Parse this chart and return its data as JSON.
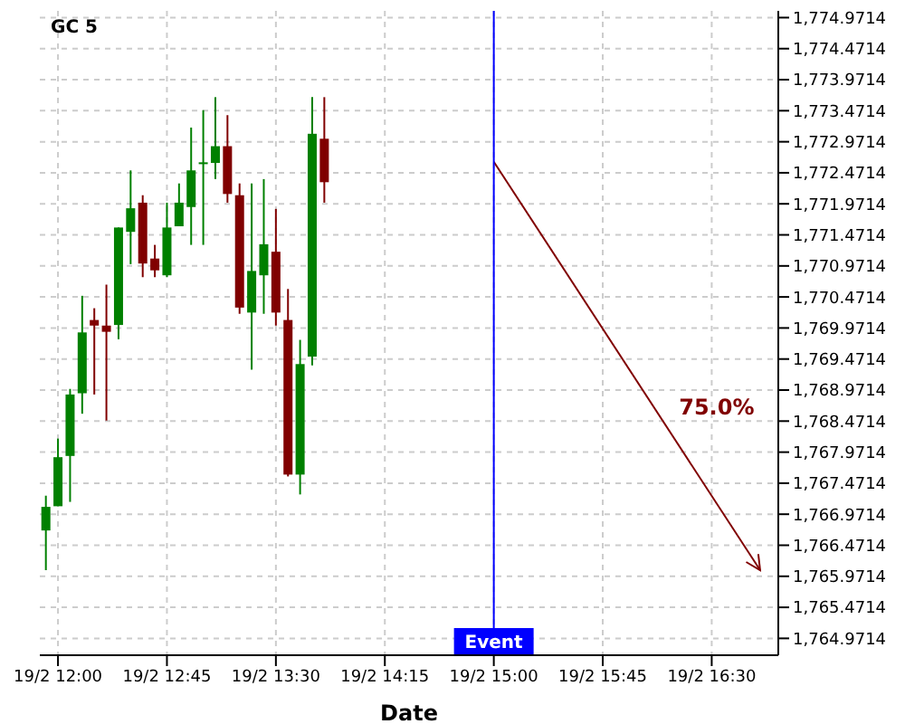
{
  "chart_data": {
    "type": "candlestick",
    "title": "GC 5",
    "xlabel": "Date",
    "categories": [
      null,
      "19/2 12:00",
      null,
      null,
      null,
      null,
      null,
      null,
      null,
      null,
      "19/2 12:45",
      null,
      null,
      null,
      null,
      null,
      null,
      null,
      null,
      "19/2 13:30",
      null,
      null,
      null,
      null,
      null,
      null,
      null,
      null,
      "19/2 14:15",
      null,
      null,
      null,
      null,
      null,
      null,
      null,
      null,
      "19/2 15:00",
      null,
      null,
      null,
      null,
      null,
      null,
      null,
      null,
      "19/2 15:45",
      null,
      null,
      null,
      null,
      null,
      null,
      null,
      null,
      "19/2 16:30",
      null,
      null,
      null,
      null,
      null
    ],
    "ohlc": [
      [
        1766.71,
        1767.27,
        1766.07,
        1767.09
      ],
      [
        1767.1,
        1768.19,
        1767.1,
        1767.89
      ],
      [
        1767.91,
        1768.99,
        1767.17,
        1768.9
      ],
      [
        1768.92,
        1770.49,
        1768.59,
        1769.9
      ],
      [
        1770.1,
        1770.29,
        1768.9,
        1770.01
      ],
      [
        1770.01,
        1770.67,
        1768.48,
        1769.91
      ],
      [
        1770.02,
        1771.59,
        1769.79,
        1771.59
      ],
      [
        1771.52,
        1772.51,
        1771.0,
        1771.9
      ],
      [
        1771.99,
        1772.11,
        1770.79,
        1771.01
      ],
      [
        1771.09,
        1771.31,
        1770.79,
        1770.9
      ],
      [
        1770.82,
        1771.99,
        1770.79,
        1771.59
      ],
      [
        1771.61,
        1772.3,
        1771.61,
        1771.99
      ],
      [
        1771.92,
        1773.2,
        1771.31,
        1772.51
      ],
      [
        1772.62,
        1773.48,
        1771.31,
        1772.64
      ],
      [
        1772.63,
        1773.69,
        1772.37,
        1772.9
      ],
      [
        1772.9,
        1773.4,
        1771.99,
        1772.13
      ],
      [
        1772.11,
        1772.3,
        1770.2,
        1770.3
      ],
      [
        1770.22,
        1772.3,
        1769.3,
        1770.89
      ],
      [
        1770.82,
        1772.37,
        1770.2,
        1771.32
      ],
      [
        1771.2,
        1771.89,
        1770.01,
        1770.22
      ],
      [
        1770.1,
        1770.6,
        1767.58,
        1767.61
      ],
      [
        1767.61,
        1769.78,
        1767.29,
        1769.39
      ],
      [
        1769.51,
        1773.69,
        1769.37,
        1773.1
      ],
      [
        1773.02,
        1773.69,
        1771.99,
        1772.32
      ],
      null,
      null,
      null,
      null,
      null,
      null,
      null,
      null,
      null,
      null,
      null,
      null,
      null,
      null,
      null,
      null,
      null,
      null,
      null,
      null,
      null,
      null,
      null,
      null,
      null,
      null,
      null,
      null,
      null,
      null,
      null,
      null,
      null,
      null,
      null,
      null,
      null
    ],
    "series": [
      {
        "type": "line",
        "color": "#800000",
        "values": [
          null,
          null,
          null,
          null,
          null,
          null,
          null,
          null,
          null,
          null,
          null,
          null,
          null,
          null,
          null,
          null,
          null,
          null,
          null,
          null,
          null,
          null,
          null,
          null,
          null,
          null,
          null,
          null,
          null,
          null,
          null,
          null,
          null,
          null,
          null,
          null,
          null,
          1772.65,
          null,
          null,
          null,
          null,
          null,
          null,
          null,
          null,
          null,
          null,
          null,
          null,
          null,
          null,
          null,
          null,
          null,
          null,
          null,
          null,
          null,
          1766.07,
          null
        ]
      }
    ],
    "ref_lines": [
      {
        "axis": "x",
        "value": "19/2 15:00",
        "label": "Event",
        "color": "#0000ff"
      }
    ],
    "annotations": [
      "75.0%"
    ],
    "ylim": [
      1764.7,
      1775.08
    ],
    "yticks": [
      {
        "value": 1764.9714,
        "label": "1,764.9714"
      },
      {
        "value": 1765.4714,
        "label": "1,765.4714"
      },
      {
        "value": 1765.9714,
        "label": "1,765.9714"
      },
      {
        "value": 1766.4714,
        "label": "1,766.4714"
      },
      {
        "value": 1766.9714,
        "label": "1,766.9714"
      },
      {
        "value": 1767.4714,
        "label": "1,767.4714"
      },
      {
        "value": 1767.9714,
        "label": "1,767.9714"
      },
      {
        "value": 1768.4714,
        "label": "1,768.4714"
      },
      {
        "value": 1768.9714,
        "label": "1,768.9714"
      },
      {
        "value": 1769.4714,
        "label": "1,769.4714"
      },
      {
        "value": 1769.9714,
        "label": "1,769.9714"
      },
      {
        "value": 1770.4714,
        "label": "1,770.4714"
      },
      {
        "value": 1770.9714,
        "label": "1,770.9714"
      },
      {
        "value": 1771.4714,
        "label": "1,771.4714"
      },
      {
        "value": 1771.9714,
        "label": "1,771.9714"
      },
      {
        "value": 1772.4714,
        "label": "1,772.4714"
      },
      {
        "value": 1772.9714,
        "label": "1,772.9714"
      },
      {
        "value": 1773.4714,
        "label": "1,773.4714"
      },
      {
        "value": 1773.9714,
        "label": "1,773.9714"
      },
      {
        "value": 1774.4714,
        "label": "1,774.4714"
      },
      {
        "value": 1774.9714,
        "label": "1,774.9714"
      }
    ],
    "grid": true
  }
}
